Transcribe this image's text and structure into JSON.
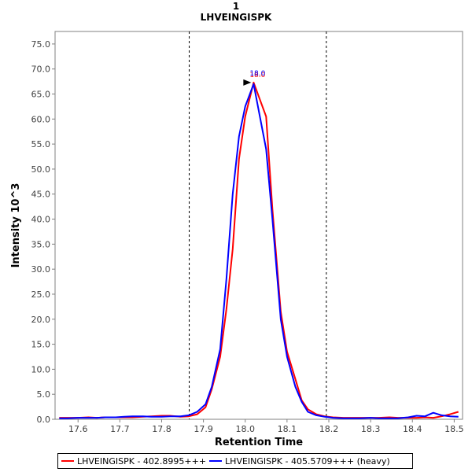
{
  "chart_data": {
    "type": "line",
    "title": "1",
    "subtitle": "LHVEINGISPK",
    "xlabel": "Retention Time",
    "ylabel": "Intensity 10^3",
    "xlim": [
      17.545,
      18.52
    ],
    "ylim": [
      0,
      77.5
    ],
    "x_ticks": [
      "17.6",
      "17.7",
      "17.8",
      "17.9",
      "18.0",
      "18.1",
      "18.2",
      "18.3",
      "18.4",
      "18.5"
    ],
    "y_ticks": [
      "0.0",
      "5.0",
      "10.0",
      "15.0",
      "20.0",
      "25.0",
      "30.0",
      "35.0",
      "40.0",
      "45.0",
      "50.0",
      "55.0",
      "60.0",
      "65.0",
      "70.0",
      "75.0"
    ],
    "grid": false,
    "vlines": [
      17.866,
      18.194
    ],
    "peak_marker": {
      "x": 18.02,
      "y": 67.3,
      "labels": [
        "18.0",
        "18.0"
      ]
    },
    "series": [
      {
        "name": "LHVEINGISPK - 402.8995+++",
        "color": "#ff0000",
        "x": [
          17.555,
          17.575,
          17.6,
          17.625,
          17.645,
          17.665,
          17.69,
          17.71,
          17.73,
          17.755,
          17.775,
          17.8,
          17.82,
          17.845,
          17.865,
          17.885,
          17.905,
          17.92,
          17.94,
          17.955,
          17.97,
          17.985,
          18.0,
          18.02,
          18.05,
          18.065,
          18.085,
          18.1,
          18.12,
          18.135,
          18.15,
          18.17,
          18.19,
          18.21,
          18.235,
          18.255,
          18.275,
          18.3,
          18.32,
          18.345,
          18.365,
          18.39,
          18.41,
          18.43,
          18.45,
          18.47,
          18.49,
          18.51
        ],
        "values": [
          0.3,
          0.3,
          0.3,
          0.4,
          0.3,
          0.4,
          0.4,
          0.4,
          0.4,
          0.5,
          0.6,
          0.7,
          0.7,
          0.5,
          0.6,
          1.0,
          2.4,
          6.0,
          12.5,
          22.0,
          34.0,
          52.0,
          60.5,
          67.3,
          60.5,
          42.0,
          21.5,
          13.5,
          8.0,
          3.8,
          2.0,
          1.0,
          0.6,
          0.4,
          0.3,
          0.3,
          0.3,
          0.3,
          0.3,
          0.4,
          0.3,
          0.3,
          0.3,
          0.4,
          0.3,
          0.6,
          1.0,
          1.5
        ]
      },
      {
        "name": "LHVEINGISPK - 405.5709+++ (heavy)",
        "color": "#0000ff",
        "x": [
          17.555,
          17.575,
          17.6,
          17.625,
          17.645,
          17.665,
          17.69,
          17.71,
          17.73,
          17.755,
          17.775,
          17.8,
          17.82,
          17.845,
          17.865,
          17.885,
          17.905,
          17.92,
          17.94,
          17.955,
          17.97,
          17.985,
          18.0,
          18.02,
          18.05,
          18.065,
          18.085,
          18.1,
          18.12,
          18.135,
          18.15,
          18.17,
          18.19,
          18.21,
          18.235,
          18.255,
          18.275,
          18.3,
          18.32,
          18.345,
          18.365,
          18.39,
          18.41,
          18.43,
          18.45,
          18.47,
          18.49,
          18.51
        ],
        "values": [
          0.2,
          0.2,
          0.3,
          0.3,
          0.3,
          0.4,
          0.4,
          0.5,
          0.6,
          0.6,
          0.5,
          0.5,
          0.6,
          0.6,
          0.8,
          1.5,
          3.0,
          6.5,
          14.0,
          28.0,
          45.0,
          56.5,
          62.5,
          67.0,
          54.0,
          40.0,
          20.0,
          12.5,
          6.5,
          3.5,
          1.5,
          0.8,
          0.5,
          0.3,
          0.2,
          0.2,
          0.2,
          0.3,
          0.2,
          0.2,
          0.2,
          0.4,
          0.7,
          0.6,
          1.3,
          0.8,
          0.6,
          0.5
        ]
      }
    ]
  }
}
